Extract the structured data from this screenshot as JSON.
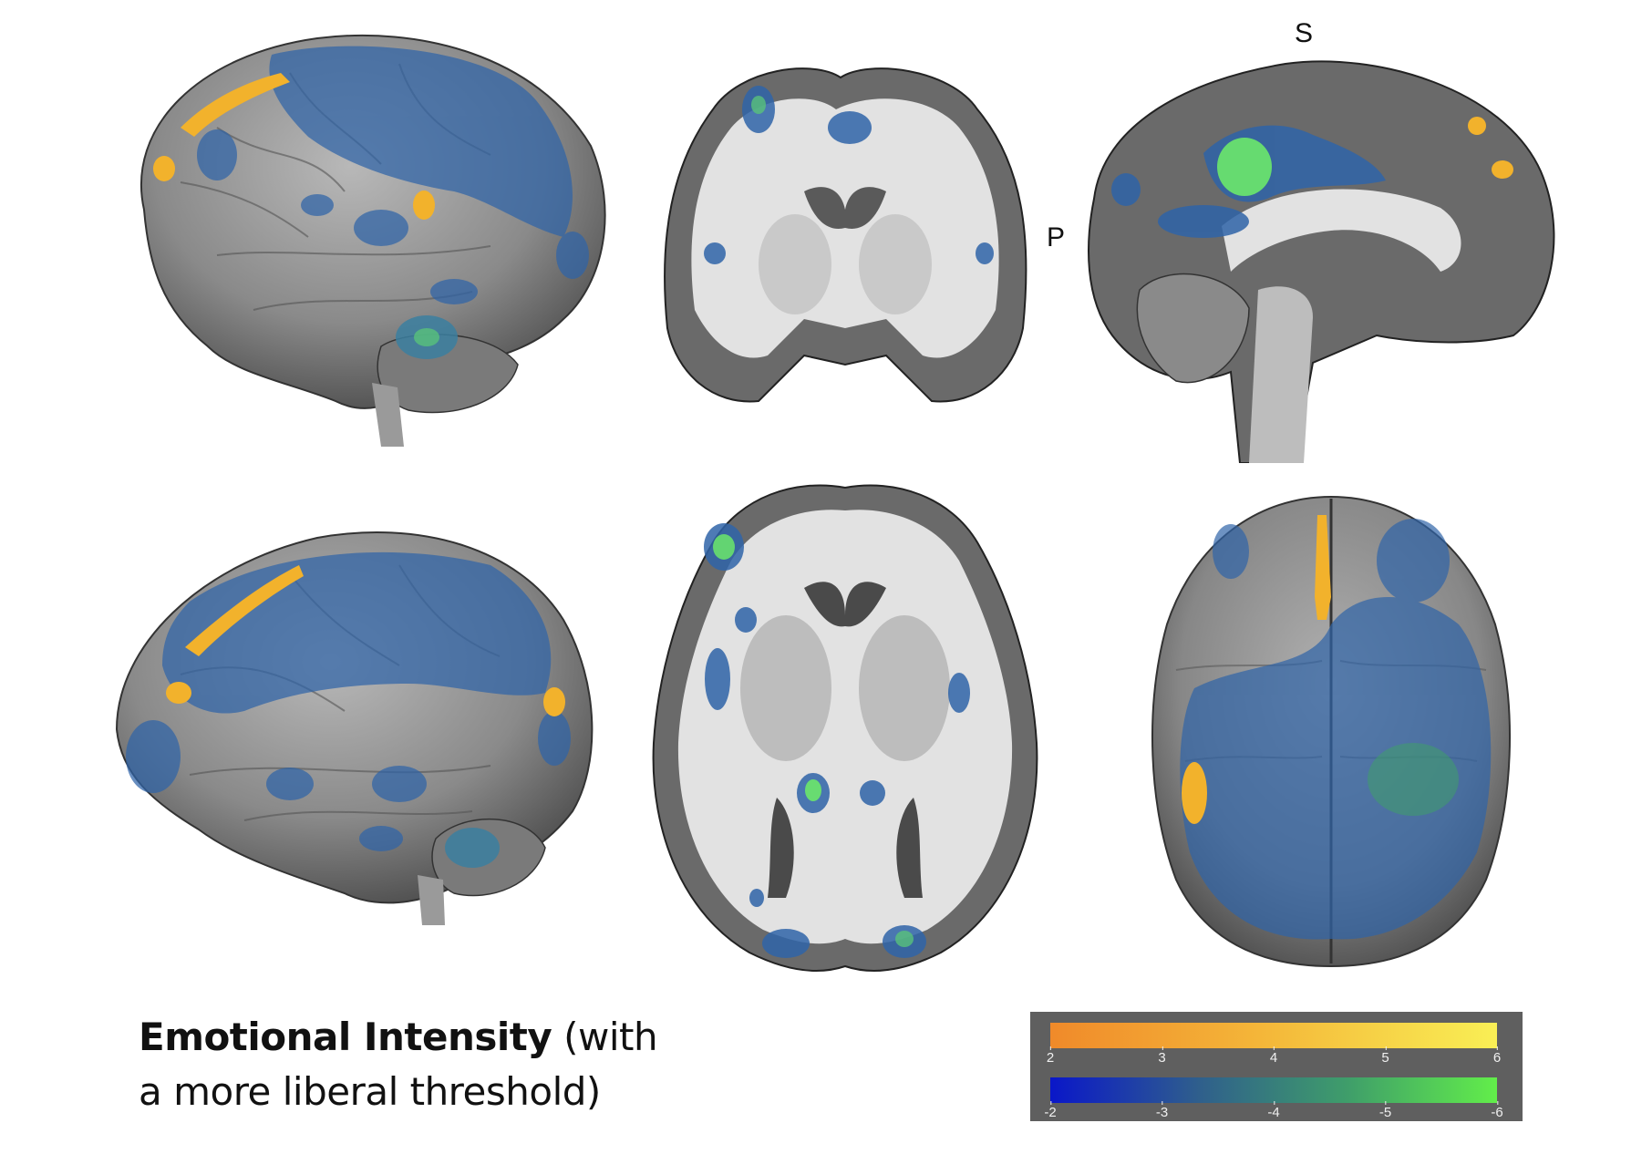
{
  "figure": {
    "caption_bold": "Emotional Intensity",
    "caption_rest_line1": " (with",
    "caption_line2": "a more liberal threshold)"
  },
  "orientation_labels": {
    "superior": "S",
    "posterior": "P"
  },
  "colorbar": {
    "positive": {
      "ticks": [
        "2",
        "3",
        "4",
        "5",
        "6"
      ],
      "colors": [
        "#f08a2a",
        "#f4b93a",
        "#f9ef55"
      ]
    },
    "negative": {
      "ticks": [
        "-2",
        "-3",
        "-4",
        "-5",
        "-6"
      ],
      "colors": [
        "#0a17c9",
        "#2f5f8c",
        "#3f9e6a",
        "#62ee4a"
      ]
    }
  },
  "colors": {
    "activation_positive": "#f2b22c",
    "activation_negative": "#2f64a8",
    "activation_peak": "#6be86a",
    "cortex": "#8a8a8a",
    "slice_gray": "#6a6a6a",
    "slice_white": "#e2e2e2",
    "background": "#ffffff"
  },
  "panels": [
    "left-lateral-3d-view",
    "coronal-slice",
    "sagittal-slice",
    "right-lateral-3d-view",
    "axial-slice",
    "top-3d-view"
  ]
}
